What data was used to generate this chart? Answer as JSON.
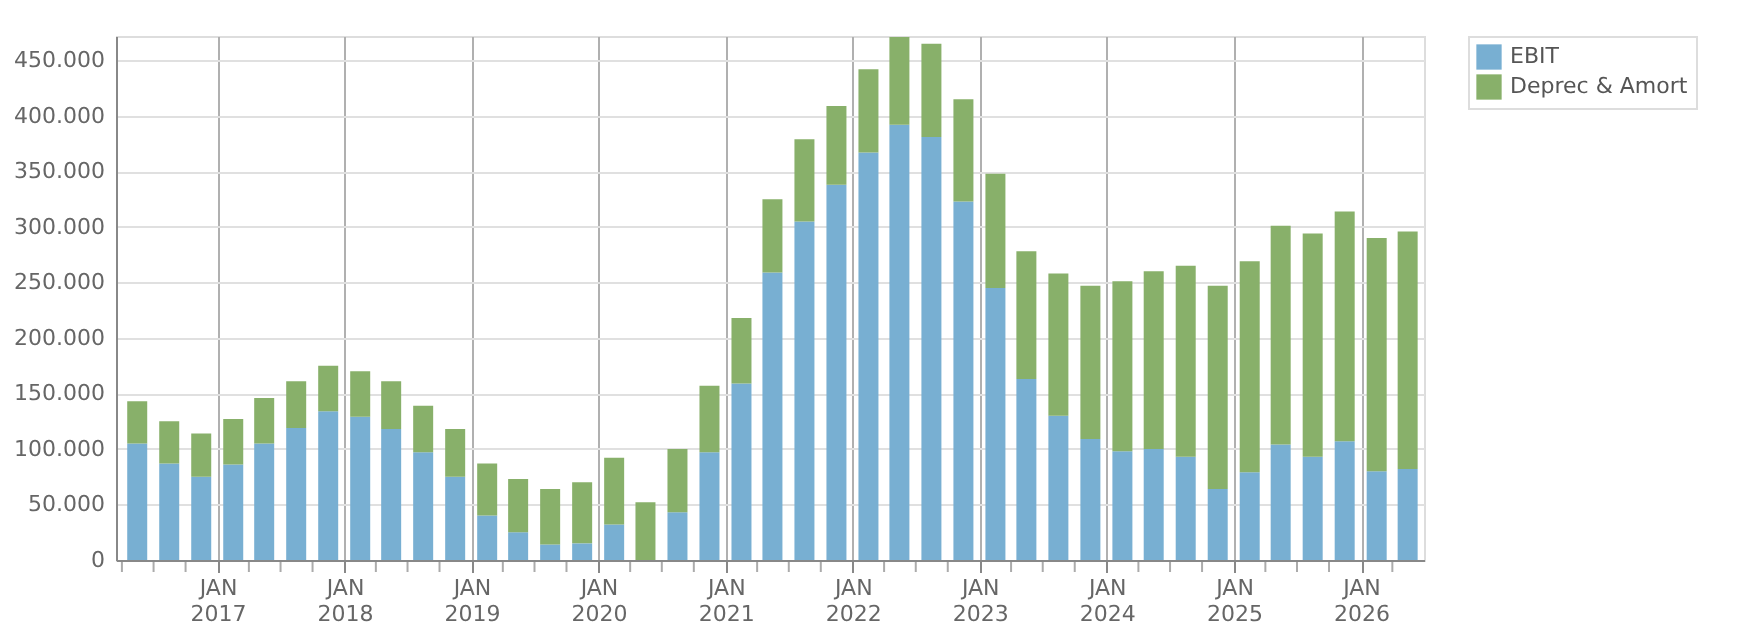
{
  "chart_data": {
    "type": "bar",
    "stacked": true,
    "x": [
      "2016-05-15",
      "2016-08-15",
      "2016-11-15",
      "2017-02-15",
      "2017-05-15",
      "2017-08-15",
      "2017-11-15",
      "2018-02-15",
      "2018-05-15",
      "2018-08-15",
      "2018-11-15",
      "2019-02-15",
      "2019-05-15",
      "2019-08-15",
      "2019-11-15",
      "2020-02-15",
      "2020-05-15",
      "2020-08-15",
      "2020-11-15",
      "2021-02-15",
      "2021-05-15",
      "2021-08-15",
      "2021-11-15",
      "2022-02-15",
      "2022-05-15",
      "2022-08-15",
      "2022-11-15",
      "2023-02-15",
      "2023-05-15",
      "2023-08-15",
      "2023-11-15",
      "2024-02-15",
      "2024-05-15",
      "2024-08-15",
      "2024-11-15",
      "2025-02-15",
      "2025-05-15",
      "2025-08-15",
      "2025-11-15",
      "2026-02-15",
      "2026-05-15"
    ],
    "series": [
      {
        "name": "EBIT",
        "color": "#78afd2",
        "values": [
          105000,
          87000,
          75000,
          86000,
          105000,
          119000,
          134000,
          129000,
          118000,
          97000,
          75000,
          40000,
          25000,
          14000,
          15000,
          32000,
          0,
          43000,
          97000,
          159000,
          259000,
          305000,
          338000,
          367000,
          392000,
          381000,
          323000,
          245000,
          163000,
          130000,
          109000,
          98000,
          100000,
          93000,
          64000,
          79000,
          104000,
          93000,
          107000,
          80000,
          82000
        ]
      },
      {
        "name": "Deprec & Amort",
        "color": "#88b06a",
        "values": [
          38000,
          38000,
          39000,
          41000,
          41000,
          42000,
          41000,
          41000,
          43000,
          42000,
          43000,
          47000,
          48000,
          50000,
          55000,
          60000,
          52000,
          57000,
          60000,
          59000,
          66000,
          74000,
          71000,
          75000,
          79000,
          84000,
          92000,
          103000,
          115000,
          128000,
          138000,
          153000,
          160000,
          172000,
          183000,
          190000,
          197000,
          201000,
          207000,
          210000,
          214000
        ]
      }
    ],
    "ylim": [
      0,
      472000
    ],
    "yticks": [
      {
        "value": 0,
        "label": "0"
      },
      {
        "value": 50000,
        "label": "50.000"
      },
      {
        "value": 100000,
        "label": "100.000"
      },
      {
        "value": 150000,
        "label": "150.000"
      },
      {
        "value": 200000,
        "label": "200.000"
      },
      {
        "value": 250000,
        "label": "250.000"
      },
      {
        "value": 300000,
        "label": "300.000"
      },
      {
        "value": 350000,
        "label": "350.000"
      },
      {
        "value": 400000,
        "label": "400.000"
      },
      {
        "value": 450000,
        "label": "450.000"
      }
    ],
    "xlim": [
      "2016-03-15",
      "2026-07-01"
    ],
    "xticks": [
      {
        "value": "2016-04-01",
        "label": null
      },
      {
        "value": "2016-07-01",
        "label": null
      },
      {
        "value": "2016-10-01",
        "label": null
      },
      {
        "value": "2017-01-01",
        "label": "JAN 2017"
      },
      {
        "value": "2017-04-01",
        "label": null
      },
      {
        "value": "2017-07-01",
        "label": null
      },
      {
        "value": "2017-10-01",
        "label": null
      },
      {
        "value": "2018-01-01",
        "label": "JAN 2018"
      },
      {
        "value": "2018-04-01",
        "label": null
      },
      {
        "value": "2018-07-01",
        "label": null
      },
      {
        "value": "2018-10-01",
        "label": null
      },
      {
        "value": "2019-01-01",
        "label": "JAN 2019"
      },
      {
        "value": "2019-04-01",
        "label": null
      },
      {
        "value": "2019-07-01",
        "label": null
      },
      {
        "value": "2019-10-01",
        "label": null
      },
      {
        "value": "2020-01-01",
        "label": "JAN 2020"
      },
      {
        "value": "2020-04-01",
        "label": null
      },
      {
        "value": "2020-07-01",
        "label": null
      },
      {
        "value": "2020-10-01",
        "label": null
      },
      {
        "value": "2021-01-01",
        "label": "JAN 2021"
      },
      {
        "value": "2021-04-01",
        "label": null
      },
      {
        "value": "2021-07-01",
        "label": null
      },
      {
        "value": "2021-10-01",
        "label": null
      },
      {
        "value": "2022-01-01",
        "label": "JAN 2022"
      },
      {
        "value": "2022-04-01",
        "label": null
      },
      {
        "value": "2022-07-01",
        "label": null
      },
      {
        "value": "2022-10-01",
        "label": null
      },
      {
        "value": "2023-01-01",
        "label": "JAN 2023"
      },
      {
        "value": "2023-04-01",
        "label": null
      },
      {
        "value": "2023-07-01",
        "label": null
      },
      {
        "value": "2023-10-01",
        "label": null
      },
      {
        "value": "2024-01-01",
        "label": "JAN 2024"
      },
      {
        "value": "2024-04-01",
        "label": null
      },
      {
        "value": "2024-07-01",
        "label": null
      },
      {
        "value": "2024-10-01",
        "label": null
      },
      {
        "value": "2025-01-01",
        "label": "JAN 2025"
      },
      {
        "value": "2025-04-01",
        "label": null
      },
      {
        "value": "2025-07-01",
        "label": null
      },
      {
        "value": "2025-10-01",
        "label": null
      },
      {
        "value": "2026-01-01",
        "label": "JAN 2026"
      },
      {
        "value": "2026-04-01",
        "label": null
      }
    ],
    "grid": true,
    "legend": "top right"
  }
}
